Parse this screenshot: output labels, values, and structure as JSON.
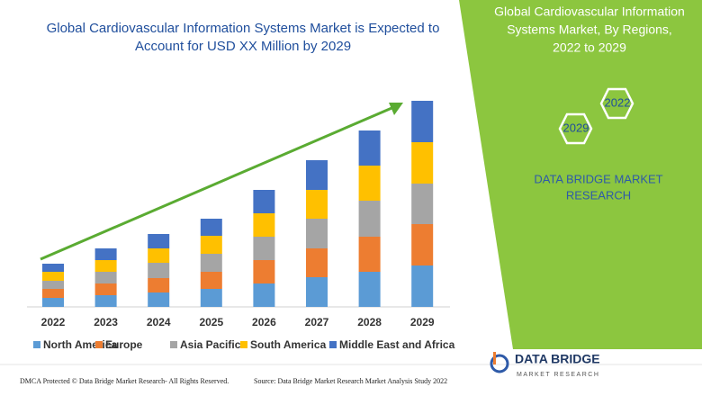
{
  "chart_data": {
    "type": "stacked_bar",
    "title": [
      "Global Cardiovascular Information Systems Market is Expected to",
      "Account for USD XX Million by 2029"
    ],
    "categories": [
      "2022",
      "2023",
      "2024",
      "2025",
      "2026",
      "2027",
      "2028",
      "2029"
    ],
    "series": [
      {
        "name": "North America",
        "color": "#5b9bd5",
        "values": [
          10,
          13,
          16,
          20,
          26,
          33,
          39,
          46
        ]
      },
      {
        "name": "Europe",
        "color": "#ed7d31",
        "values": [
          10,
          13,
          16,
          19,
          26,
          32,
          39,
          46
        ]
      },
      {
        "name": "Asia Pacific",
        "color": "#a5a5a5",
        "values": [
          9,
          13,
          17,
          20,
          26,
          33,
          40,
          45
        ]
      },
      {
        "name": "South America",
        "color": "#ffc000",
        "values": [
          10,
          13,
          16,
          20,
          26,
          32,
          39,
          46
        ]
      },
      {
        "name": "Middle East and Africa",
        "color": "#4472c4",
        "values": [
          9,
          13,
          16,
          19,
          26,
          33,
          39,
          46
        ]
      }
    ]
  },
  "panel": {
    "title": [
      "Global Cardiovascular Information",
      "Systems Market, By Regions,",
      "2022 to 2029"
    ],
    "hex_years": [
      "2022",
      "2029"
    ],
    "brand": [
      "DATA BRIDGE MARKET",
      "RESEARCH"
    ]
  },
  "footer": {
    "left": "DMCA Protected © Data Bridge Market Research- All Rights Reserved.",
    "right": "Source: Data Bridge Market Research Market Analysis Study 2022",
    "logo": "DATA BRIDGE",
    "logo_sub": "MARKET RESEARCH"
  }
}
